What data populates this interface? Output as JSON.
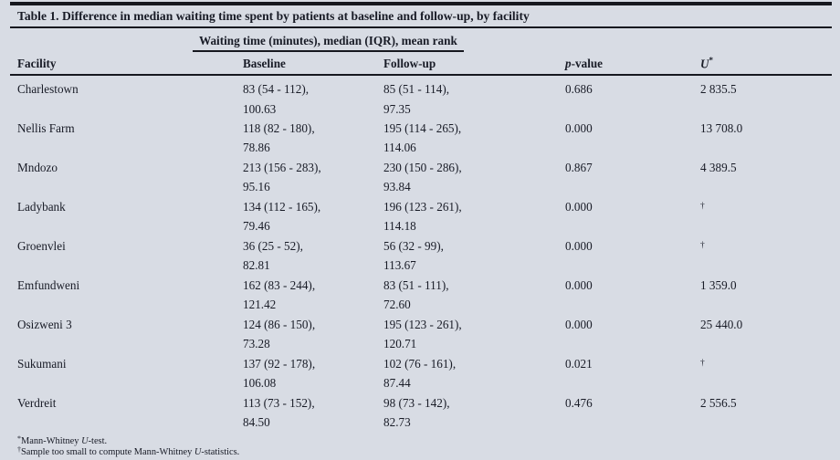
{
  "page": {
    "background": "#d8dce4",
    "text_color": "#181b26",
    "rule_color": "#16181f"
  },
  "table": {
    "title": "Table 1. Difference in median waiting time spent by patients at baseline and follow-up, by facility",
    "span_header": "Waiting time (minutes), median (IQR), mean rank",
    "columns": {
      "facility": "Facility",
      "baseline": "Baseline",
      "followup": "Follow-up",
      "p_italic": "p",
      "p_rest": "-value",
      "u_italic": "U",
      "u_sup": "*"
    },
    "rows": [
      {
        "facility": "Charlestown",
        "baseline_iqr": "83 (54 - 112),",
        "baseline_rank": "100.63",
        "followup_iqr": "85 (51 - 114),",
        "followup_rank": "97.35",
        "p": "0.686",
        "u": "2 835.5"
      },
      {
        "facility": "Nellis Farm",
        "baseline_iqr": "118 (82 - 180),",
        "baseline_rank": "78.86",
        "followup_iqr": "195 (114 - 265),",
        "followup_rank": "114.06",
        "p": "0.000",
        "u": "13 708.0"
      },
      {
        "facility": "Mndozo",
        "baseline_iqr": "213 (156 - 283),",
        "baseline_rank": "95.16",
        "followup_iqr": "230 (150 - 286),",
        "followup_rank": "93.84",
        "p": "0.867",
        "u": "4 389.5"
      },
      {
        "facility": "Ladybank",
        "baseline_iqr": "134 (112 - 165),",
        "baseline_rank": "79.46",
        "followup_iqr": "196 (123 - 261),",
        "followup_rank": "114.18",
        "p": "0.000",
        "u": "†"
      },
      {
        "facility": "Groenvlei",
        "baseline_iqr": "36 (25 - 52),",
        "baseline_rank": "82.81",
        "followup_iqr": "56 (32 - 99),",
        "followup_rank": "113.67",
        "p": "0.000",
        "u": "†"
      },
      {
        "facility": "Emfundweni",
        "baseline_iqr": "162 (83 - 244),",
        "baseline_rank": "121.42",
        "followup_iqr": "83 (51 - 111),",
        "followup_rank": "72.60",
        "p": "0.000",
        "u": "1 359.0"
      },
      {
        "facility": "Osizweni 3",
        "baseline_iqr": "124 (86 - 150),",
        "baseline_rank": "73.28",
        "followup_iqr": "195 (123 - 261),",
        "followup_rank": "120.71",
        "p": "0.000",
        "u": "25 440.0"
      },
      {
        "facility": "Sukumani",
        "baseline_iqr": "137 (92 - 178),",
        "baseline_rank": "106.08",
        "followup_iqr": "102 (76 - 161),",
        "followup_rank": "87.44",
        "p": "0.021",
        "u": "†"
      },
      {
        "facility": "Verdreit",
        "baseline_iqr": "113 (73 - 152),",
        "baseline_rank": "84.50",
        "followup_iqr": "98 (73 - 142),",
        "followup_rank": "82.73",
        "p": "0.476",
        "u": "2 556.5"
      }
    ],
    "footnotes": [
      {
        "marker": "*",
        "before": "Mann-Whitney ",
        "italic": "U",
        "after": "-test."
      },
      {
        "marker": "†",
        "before": "Sample too small to compute Mann-Whitney ",
        "italic": "U",
        "after": "-statistics."
      }
    ]
  }
}
